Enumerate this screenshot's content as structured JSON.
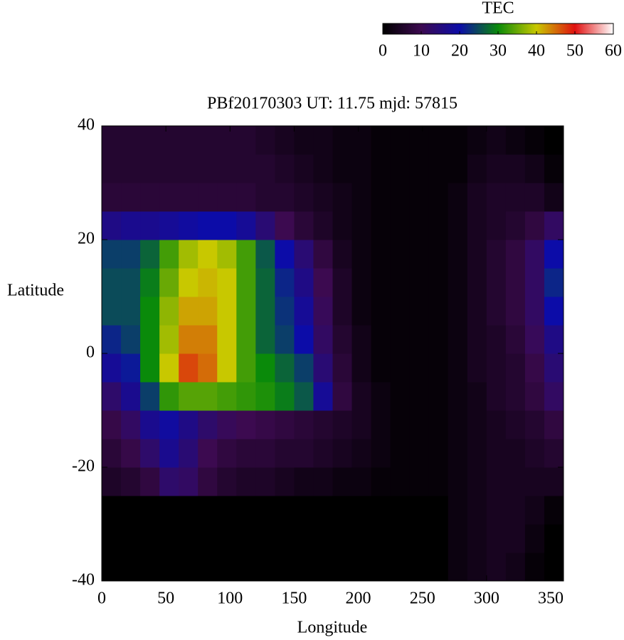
{
  "chart_data": {
    "type": "heatmap",
    "title": "PBf20170303  UT: 11.75  mjd: 57815",
    "x_label": "Longitude",
    "y_label": "Latitude",
    "colorbar_label": "TEC",
    "x": [
      7.5,
      22.5,
      37.5,
      52.5,
      67.5,
      82.5,
      97.5,
      112.5,
      127.5,
      142.5,
      157.5,
      172.5,
      187.5,
      202.5,
      217.5,
      232.5,
      247.5,
      262.5,
      277.5,
      292.5,
      307.5,
      322.5,
      337.5,
      352.5
    ],
    "y": [
      -37.5,
      -32.5,
      -27.5,
      -22.5,
      -17.5,
      -12.5,
      -7.5,
      -2.5,
      2.5,
      7.5,
      12.5,
      17.5,
      22.5,
      27.5,
      32.5,
      37.5
    ],
    "values": [
      [
        0,
        0,
        0,
        0,
        0,
        0,
        0,
        0,
        0,
        0,
        0,
        0,
        0,
        0,
        0,
        0,
        0,
        0,
        2,
        3,
        4,
        3,
        1,
        0
      ],
      [
        0,
        0,
        0,
        0,
        0,
        0,
        0,
        0,
        0,
        0,
        0,
        0,
        0,
        0,
        0,
        0,
        0,
        0,
        2,
        3,
        4,
        4,
        2,
        0
      ],
      [
        0,
        0,
        0,
        0,
        0,
        0,
        0,
        0,
        0,
        0,
        0,
        0,
        0,
        0,
        0,
        0,
        0,
        0,
        2,
        3,
        4,
        4,
        3,
        1
      ],
      [
        5,
        6,
        8,
        13,
        12,
        8,
        6,
        5,
        5,
        4,
        3,
        3,
        2,
        2,
        1,
        1,
        1,
        1,
        2,
        3,
        4,
        4,
        4,
        4
      ],
      [
        7,
        9,
        13,
        17,
        14,
        10,
        8,
        7,
        7,
        6,
        6,
        5,
        4,
        3,
        2,
        1,
        1,
        1,
        2,
        3,
        4,
        4,
        5,
        6
      ],
      [
        9,
        12,
        17,
        19,
        16,
        13,
        11,
        10,
        9,
        8,
        7,
        6,
        5,
        4,
        2,
        1,
        1,
        1,
        2,
        3,
        4,
        5,
        6,
        8
      ],
      [
        13,
        17,
        24,
        32,
        34,
        34,
        33,
        32,
        31,
        29,
        26,
        18,
        8,
        4,
        2,
        1,
        1,
        1,
        2,
        3,
        5,
        6,
        8,
        12
      ],
      [
        18,
        21,
        30,
        40,
        47,
        45,
        40,
        33,
        30,
        27,
        24,
        14,
        7,
        3,
        1,
        1,
        1,
        1,
        2,
        4,
        5,
        6,
        9,
        14
      ],
      [
        22,
        24,
        30,
        38,
        44,
        44,
        40,
        33,
        27,
        24,
        20,
        12,
        6,
        3,
        1,
        1,
        1,
        1,
        2,
        4,
        5,
        7,
        11,
        16
      ],
      [
        25,
        25,
        30,
        37,
        42,
        42,
        40,
        33,
        27,
        23,
        18,
        11,
        5,
        2,
        1,
        1,
        1,
        1,
        2,
        4,
        6,
        8,
        12,
        20
      ],
      [
        25,
        25,
        29,
        35,
        40,
        41,
        40,
        33,
        27,
        22,
        16,
        10,
        5,
        2,
        1,
        1,
        1,
        1,
        2,
        4,
        6,
        8,
        12,
        22
      ],
      [
        24,
        24,
        27,
        33,
        38,
        40,
        38,
        33,
        26,
        20,
        14,
        8,
        4,
        2,
        1,
        1,
        1,
        1,
        2,
        4,
        6,
        8,
        12,
        20
      ],
      [
        16,
        17,
        17,
        18,
        19,
        20,
        20,
        18,
        14,
        10,
        7,
        5,
        3,
        2,
        1,
        1,
        1,
        1,
        2,
        4,
        5,
        6,
        8,
        12
      ],
      [
        7,
        7,
        7,
        7,
        7,
        7,
        7,
        7,
        6,
        6,
        5,
        4,
        3,
        2,
        1,
        1,
        1,
        1,
        2,
        4,
        5,
        5,
        5,
        3
      ],
      [
        6,
        6,
        6,
        6,
        6,
        6,
        6,
        6,
        6,
        5,
        4,
        3,
        2,
        2,
        1,
        1,
        1,
        1,
        1,
        3,
        4,
        4,
        3,
        1
      ],
      [
        6,
        6,
        6,
        6,
        6,
        6,
        6,
        6,
        5,
        4,
        3,
        3,
        2,
        2,
        1,
        1,
        1,
        1,
        1,
        2,
        3,
        2,
        1,
        0
      ]
    ],
    "xlim": [
      0,
      360
    ],
    "xticks": [
      0,
      50,
      100,
      150,
      200,
      250,
      300,
      350
    ],
    "ylim": [
      -40,
      40
    ],
    "yticks": [
      -40,
      -20,
      0,
      20,
      40
    ],
    "zlim": [
      0,
      60
    ],
    "zticks": [
      0,
      10,
      20,
      30,
      40,
      50,
      60
    ],
    "colormap": [
      "#000000",
      "#3c0a50",
      "#0c0ca8",
      "#0a8a0a",
      "#c8c800",
      "#e01010",
      "#ffffff"
    ]
  }
}
